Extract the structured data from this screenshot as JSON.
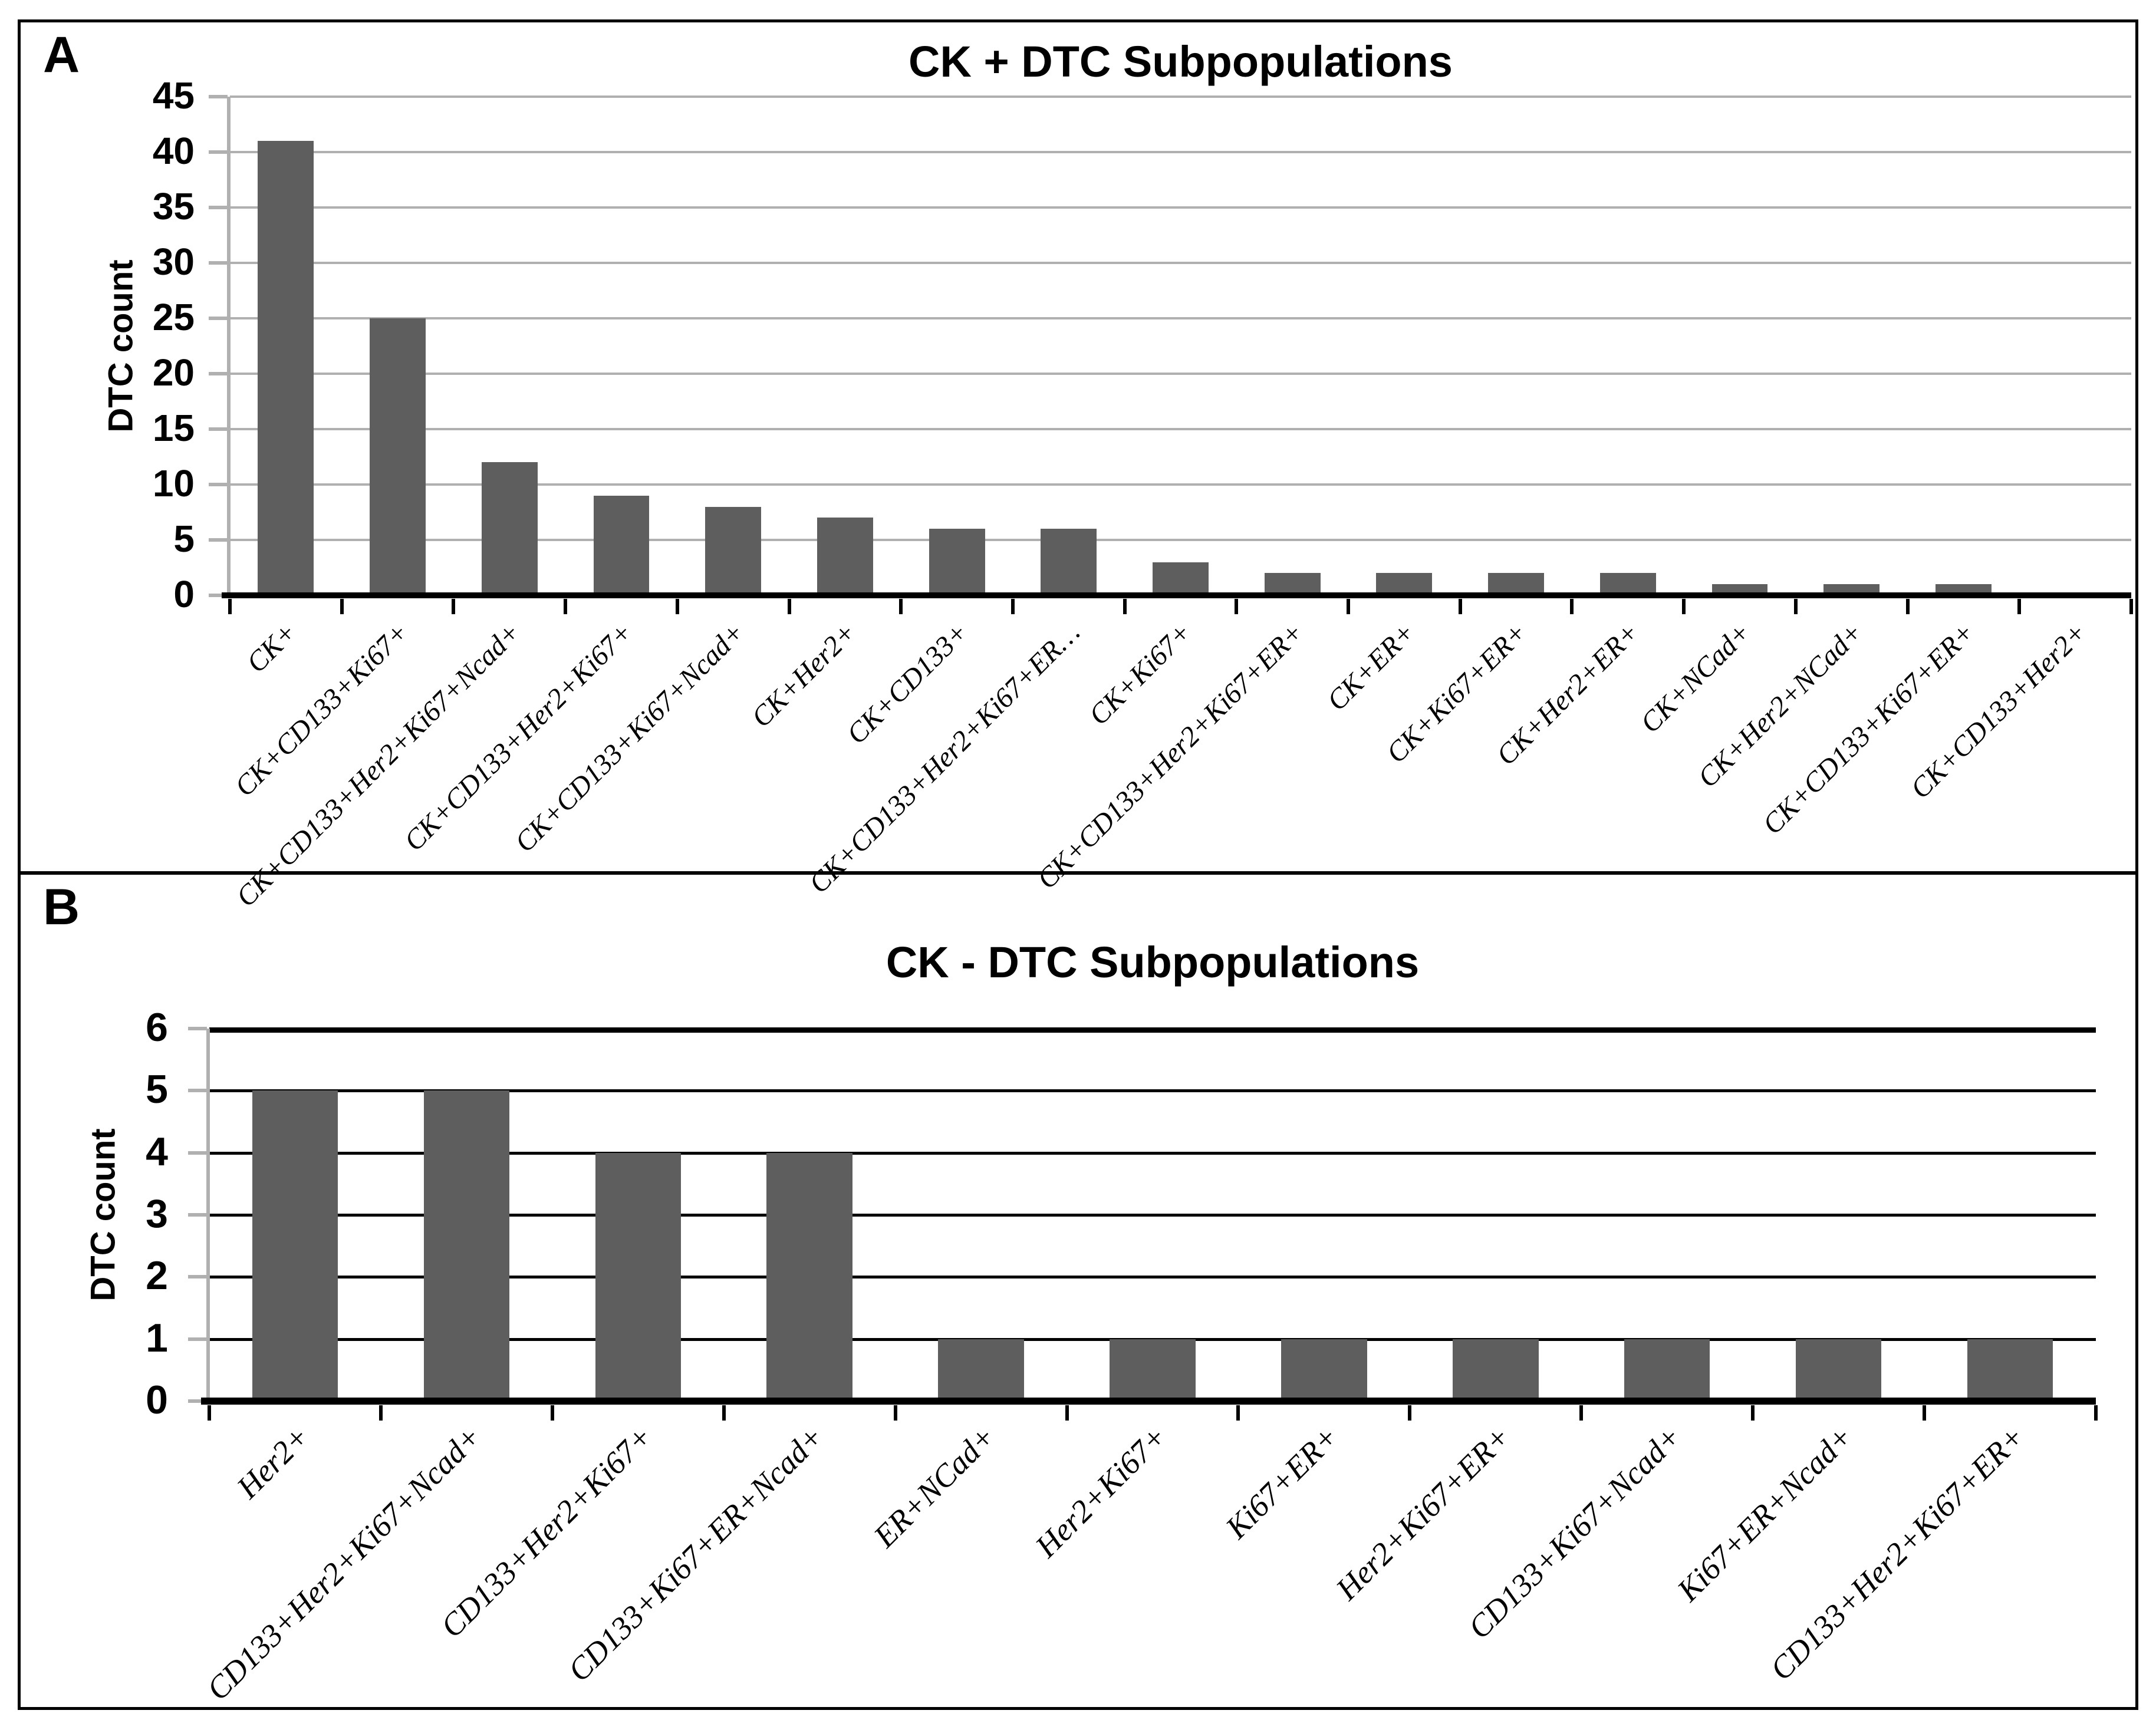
{
  "chart_data": [
    {
      "type": "bar",
      "panel": "A",
      "title": "CK + DTC Subpopulations",
      "xlabel": "",
      "ylabel": "DTC count",
      "ylim": [
        0,
        45
      ],
      "ytick_step": 5,
      "yticks": [
        45,
        40,
        35,
        30,
        25,
        20,
        15,
        10,
        5,
        0
      ],
      "grid": true,
      "legend_position": "none",
      "bar_color": "#5E5E5E",
      "gridline_color": "#B0B0B0",
      "axis_color": "#B0B0B0",
      "baseline_color": "#000000",
      "categories": [
        "CK+",
        "CK+CD133+Ki67+",
        "CK+CD133+Her2+Ki67+Ncad+",
        "CK+CD133+Her2+Ki67+",
        "CK+CD133+Ki67+Ncad+",
        "CK+Her2+",
        "CK+CD133+",
        "CK+CD133+Her2+Ki67+ER…",
        "CK+Ki67+",
        "CK+CD133+Her2+Ki67+ER+",
        "CK+ER+",
        "CK+Ki67+ER+",
        "CK+Her2+ER+",
        "CK+NCad+",
        "CK+Her2+NCad+",
        "CK+CD133+Ki67+ER+",
        "CK+CD133+Her2+"
      ],
      "values": [
        41,
        25,
        12,
        9,
        8,
        7,
        6,
        6,
        3,
        2,
        2,
        2,
        2,
        1,
        1,
        1,
        0
      ]
    },
    {
      "type": "bar",
      "panel": "B",
      "title": "CK - DTC Subpopulations",
      "xlabel": "",
      "ylabel": "DTC count",
      "ylim": [
        0,
        6
      ],
      "ytick_step": 1,
      "yticks": [
        6,
        5,
        4,
        3,
        2,
        1,
        0
      ],
      "grid": true,
      "legend_position": "none",
      "bar_color": "#5E5E5E",
      "gridline_color": "#000000",
      "axis_color": "#B0B0B0",
      "baseline_color": "#000000",
      "categories": [
        "Her2+",
        "CD133+Her2+Ki67+Ncad+",
        "CD133+Her2+Ki67+",
        "CD133+Ki67+ER+Ncad+",
        "ER+NCad+",
        "Her2+Ki67+",
        "Ki67+ER+",
        "Her2+Ki67+ER+",
        "CD133+Ki67+Ncad+",
        "Ki67+ER+Ncad+",
        "CD133+Her2+Ki67+ER+"
      ],
      "values": [
        5,
        5,
        4,
        4,
        1,
        1,
        1,
        1,
        1,
        1,
        1
      ]
    }
  ]
}
